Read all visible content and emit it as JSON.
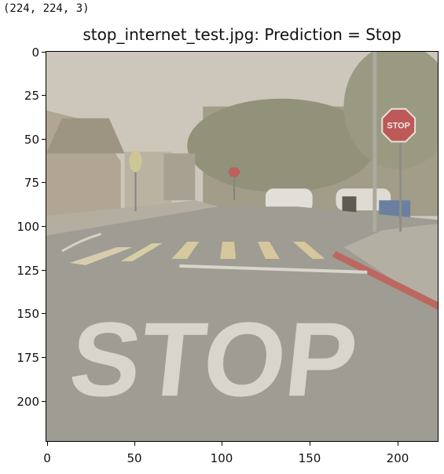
{
  "output": {
    "shape_text": "(224, 224, 3)"
  },
  "figure": {
    "title": "stop_internet_test.jpg: Prediction = Stop",
    "image": {
      "road_marking_text": "STOP",
      "sign_text": "STOP"
    },
    "y_ticks": [
      "0",
      "25",
      "50",
      "75",
      "100",
      "125",
      "150",
      "175",
      "200"
    ],
    "x_ticks": [
      "0",
      "50",
      "100",
      "150",
      "200"
    ]
  }
}
